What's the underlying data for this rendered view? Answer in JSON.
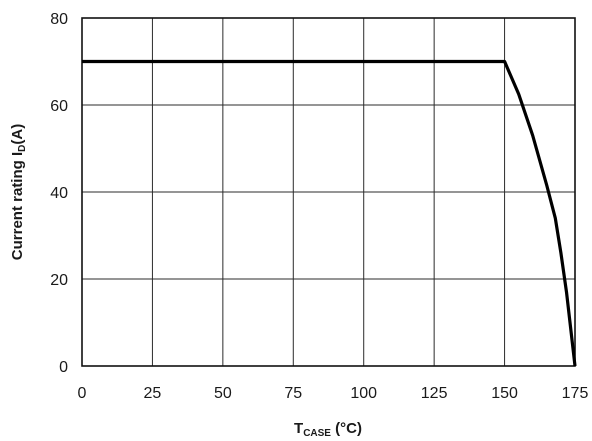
{
  "chart_data": {
    "type": "line",
    "title": "",
    "xlabel": {
      "main": "T",
      "sub": "CASE",
      "unit": " (°C)"
    },
    "ylabel": {
      "main": "Current rating I",
      "sub": "D",
      "unit": "(A)"
    },
    "xlim": [
      0,
      175
    ],
    "ylim": [
      0,
      80
    ],
    "xticks": [
      0,
      25,
      50,
      75,
      100,
      125,
      150,
      175
    ],
    "yticks": [
      0,
      20,
      40,
      60,
      80
    ],
    "grid": true,
    "legend": "none",
    "series": [
      {
        "color": "#000000",
        "x": [
          0,
          150,
          155,
          160,
          165,
          168,
          170,
          172,
          175
        ],
        "y": [
          70,
          70,
          62.5,
          53,
          41.5,
          34,
          26,
          17,
          0
        ]
      }
    ]
  }
}
